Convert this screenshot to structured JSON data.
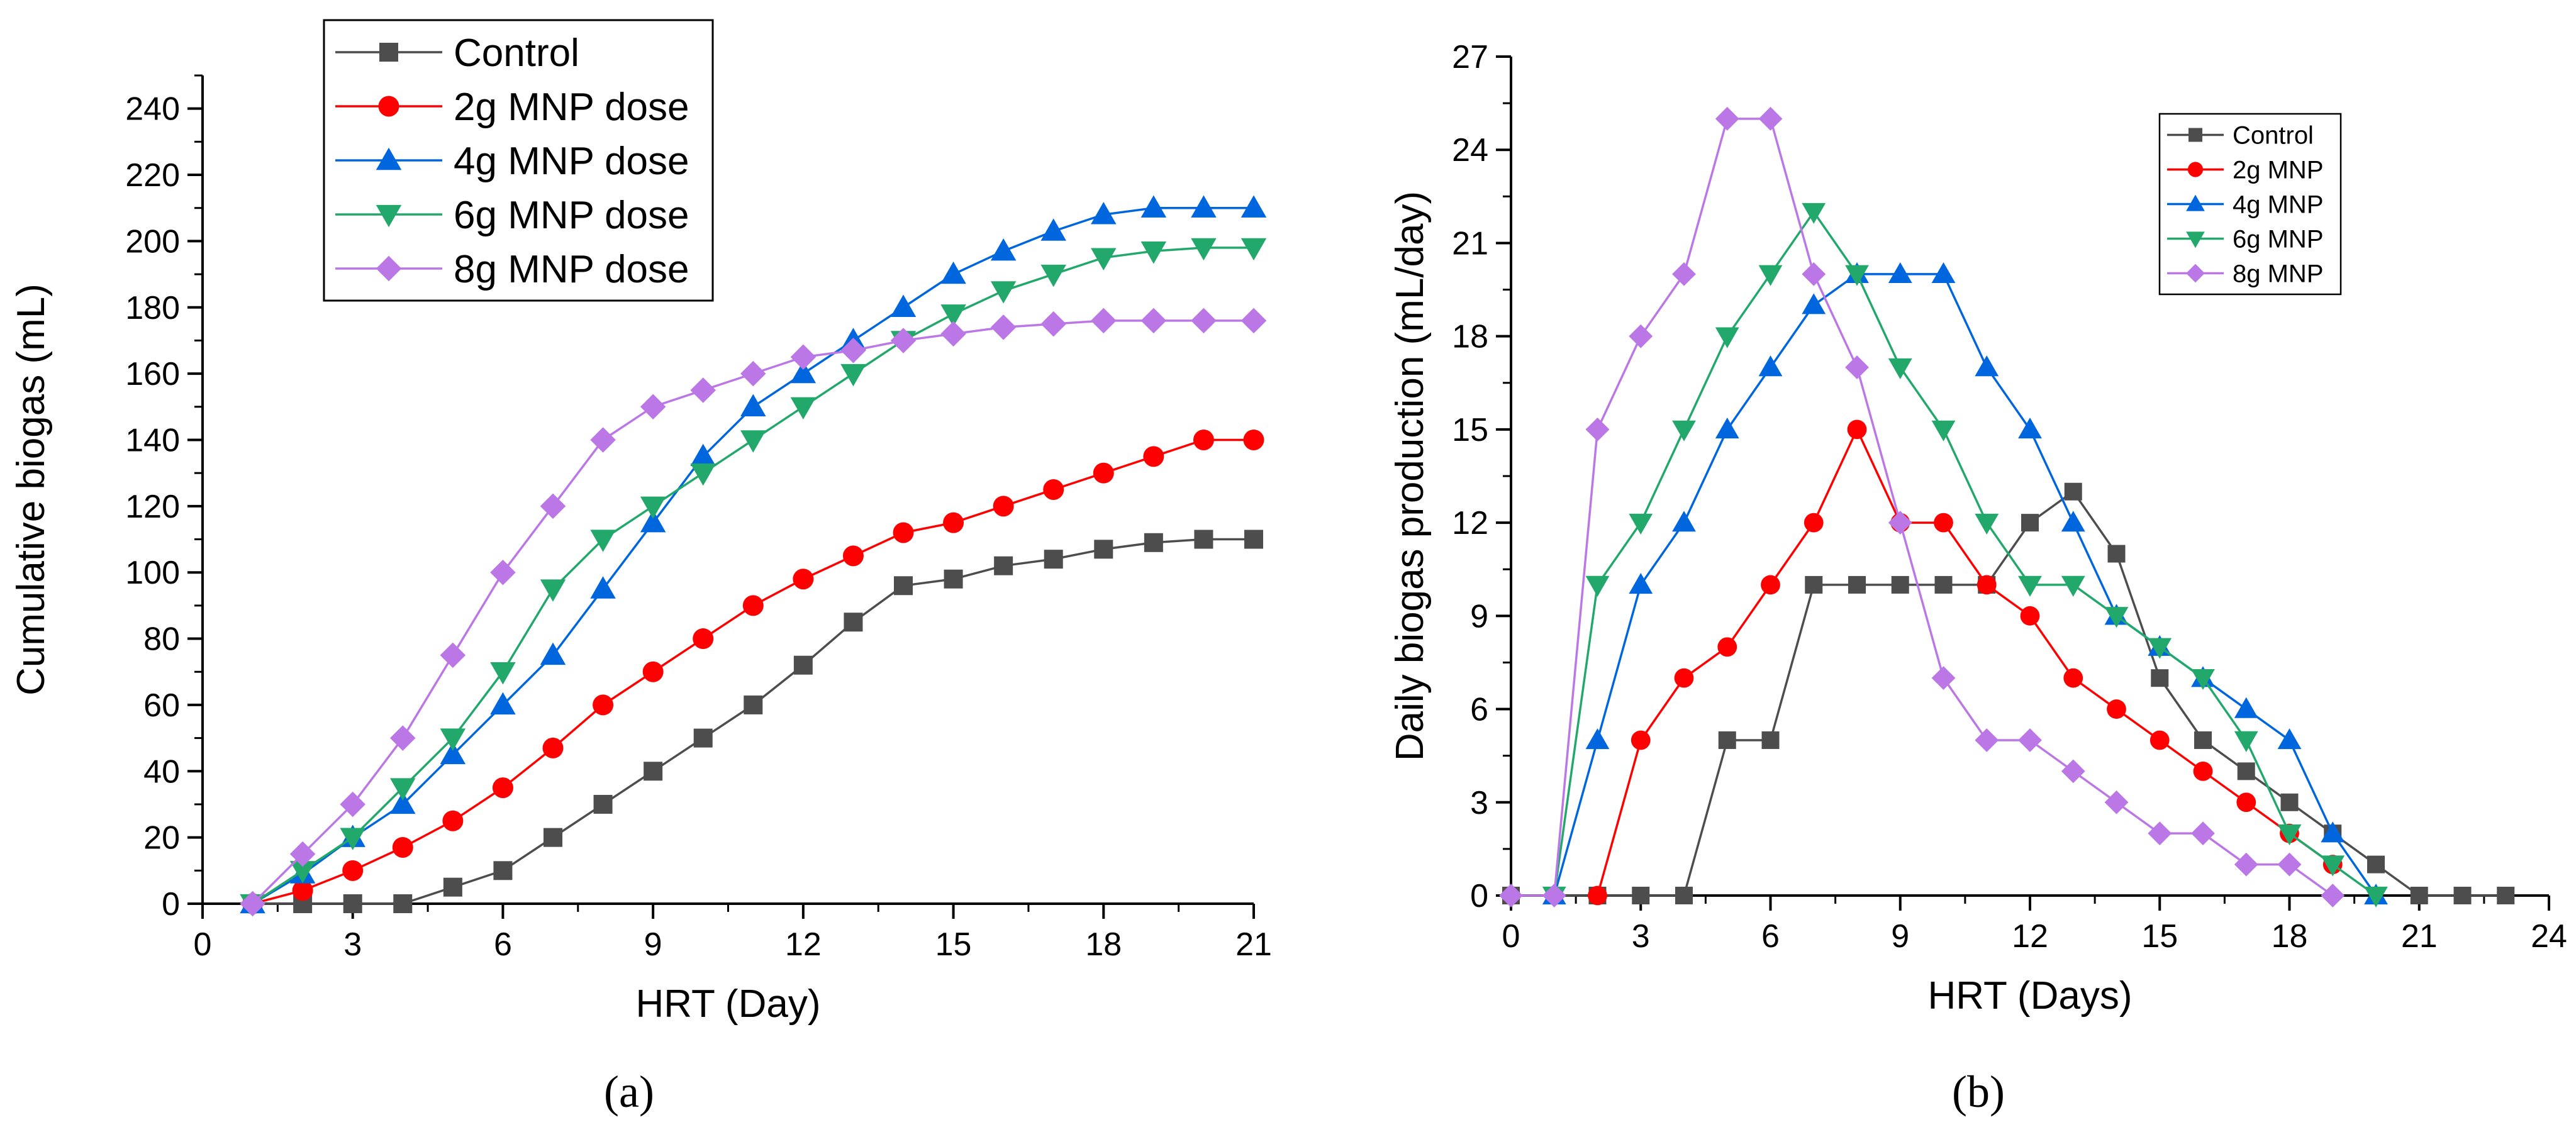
{
  "chart_data": [
    {
      "type": "line",
      "panel_label": "(a)",
      "xlabel": "HRT (Day)",
      "ylabel": "Cumulative biogas (mL)",
      "xlim": [
        0,
        21
      ],
      "ylim": [
        0,
        250
      ],
      "xticks": [
        0,
        3,
        6,
        9,
        12,
        15,
        18,
        21
      ],
      "yticks": [
        0,
        20,
        40,
        60,
        80,
        100,
        120,
        140,
        160,
        180,
        200,
        220,
        240
      ],
      "legend_position": "top-center",
      "series": [
        {
          "name": "Control",
          "color": "#4d4d4d",
          "marker": "square",
          "x": [
            1,
            2,
            3,
            4,
            5,
            6,
            7,
            8,
            9,
            10,
            11,
            12,
            13,
            14,
            15,
            16,
            17,
            18,
            19,
            20,
            21
          ],
          "y": [
            0,
            0,
            0,
            0,
            5,
            10,
            20,
            30,
            40,
            50,
            60,
            72,
            85,
            96,
            98,
            102,
            104,
            107,
            109,
            110,
            110
          ]
        },
        {
          "name": "2g MNP dose",
          "color": "#ff0000",
          "marker": "circle",
          "x": [
            1,
            2,
            3,
            4,
            5,
            6,
            7,
            8,
            9,
            10,
            11,
            12,
            13,
            14,
            15,
            16,
            17,
            18,
            19,
            20,
            21
          ],
          "y": [
            0,
            4,
            10,
            17,
            25,
            35,
            47,
            60,
            70,
            80,
            90,
            98,
            105,
            112,
            115,
            120,
            125,
            130,
            135,
            140,
            140
          ]
        },
        {
          "name": "4g MNP dose",
          "color": "#0066dd",
          "marker": "triangle-up",
          "x": [
            1,
            2,
            3,
            4,
            5,
            6,
            7,
            8,
            9,
            10,
            11,
            12,
            13,
            14,
            15,
            16,
            17,
            18,
            19,
            20,
            21
          ],
          "y": [
            0,
            9,
            20,
            30,
            45,
            60,
            75,
            95,
            115,
            135,
            150,
            160,
            170,
            180,
            190,
            197,
            203,
            208,
            210,
            210,
            210
          ]
        },
        {
          "name": "6g MNP dose",
          "color": "#22a86a",
          "marker": "triangle-down",
          "x": [
            1,
            2,
            3,
            4,
            5,
            6,
            7,
            8,
            9,
            10,
            11,
            12,
            13,
            14,
            15,
            16,
            17,
            18,
            19,
            20,
            21
          ],
          "y": [
            0,
            10,
            20,
            35,
            50,
            70,
            95,
            110,
            120,
            130,
            140,
            150,
            160,
            170,
            178,
            185,
            190,
            195,
            197,
            198,
            198
          ]
        },
        {
          "name": "8g MNP dose",
          "color": "#bb77e6",
          "marker": "diamond",
          "x": [
            1,
            2,
            3,
            4,
            5,
            6,
            7,
            8,
            9,
            10,
            11,
            12,
            13,
            14,
            15,
            16,
            17,
            18,
            19,
            20,
            21
          ],
          "y": [
            0,
            15,
            30,
            50,
            75,
            100,
            120,
            140,
            150,
            155,
            160,
            165,
            167,
            170,
            172,
            174,
            175,
            176,
            176,
            176,
            176
          ]
        }
      ]
    },
    {
      "type": "line",
      "panel_label": "(b)",
      "xlabel": "HRT (Days)",
      "ylabel": "Daily biogas production (mL/day)",
      "xlim": [
        0,
        24
      ],
      "ylim": [
        0,
        27
      ],
      "xticks": [
        0,
        3,
        6,
        9,
        12,
        15,
        18,
        21,
        24
      ],
      "yticks": [
        0,
        3,
        6,
        9,
        12,
        15,
        18,
        21,
        24,
        27
      ],
      "legend_position": "top-right",
      "series": [
        {
          "name": "Control",
          "color": "#4d4d4d",
          "marker": "square",
          "x": [
            0,
            1,
            2,
            3,
            4,
            5,
            6,
            7,
            8,
            9,
            10,
            11,
            12,
            13,
            14,
            15,
            16,
            17,
            18,
            19,
            20,
            21,
            22,
            23
          ],
          "y": [
            0,
            0,
            0,
            0,
            0,
            5,
            5,
            10,
            10,
            10,
            10,
            10,
            12,
            13,
            11,
            7,
            5,
            4,
            3,
            2,
            1,
            0,
            0,
            0
          ]
        },
        {
          "name": "2g MNP",
          "color": "#ff0000",
          "marker": "circle",
          "x": [
            2,
            3,
            4,
            5,
            6,
            7,
            8,
            9,
            10,
            11,
            12,
            13,
            14,
            15,
            16,
            17,
            18,
            19
          ],
          "y": [
            0,
            5,
            7,
            8,
            10,
            12,
            15,
            12,
            12,
            10,
            9,
            7,
            6,
            5,
            4,
            3,
            2,
            1
          ]
        },
        {
          "name": "4g MNP",
          "color": "#0066dd",
          "marker": "triangle-up",
          "x": [
            1,
            2,
            3,
            4,
            5,
            6,
            7,
            8,
            9,
            10,
            11,
            12,
            13,
            14,
            15,
            16,
            17,
            18,
            19,
            20
          ],
          "y": [
            0,
            5,
            10,
            12,
            15,
            17,
            19,
            20,
            20,
            20,
            17,
            15,
            12,
            9,
            8,
            7,
            6,
            5,
            2,
            0
          ]
        },
        {
          "name": "6g MNP",
          "color": "#22a86a",
          "marker": "triangle-down",
          "x": [
            1,
            2,
            3,
            4,
            5,
            6,
            7,
            8,
            9,
            10,
            11,
            12,
            13,
            14,
            15,
            16,
            17,
            18,
            19,
            20
          ],
          "y": [
            0,
            10,
            12,
            15,
            18,
            20,
            22,
            20,
            17,
            15,
            12,
            10,
            10,
            9,
            8,
            7,
            5,
            2,
            1,
            0
          ]
        },
        {
          "name": "8g MNP",
          "color": "#bb77e6",
          "marker": "diamond",
          "x": [
            0,
            1,
            2,
            3,
            4,
            5,
            6,
            7,
            8,
            9,
            10,
            11,
            12,
            13,
            14,
            15,
            16,
            17,
            18,
            19
          ],
          "y": [
            0,
            0,
            15,
            18,
            20,
            25,
            25,
            20,
            17,
            12,
            7,
            5,
            5,
            4,
            3,
            2,
            2,
            1,
            1,
            0
          ]
        }
      ]
    }
  ]
}
